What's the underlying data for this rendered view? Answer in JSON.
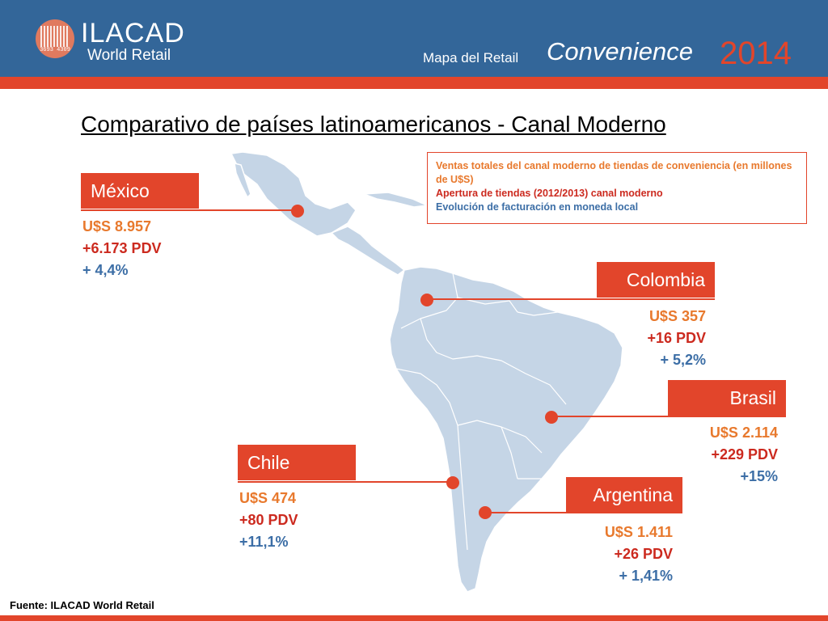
{
  "header": {
    "logo": {
      "name": "ILACAD",
      "subtitle": "World Retail",
      "code": "3693 4309"
    },
    "report_label": "Mapa del Retail",
    "report_title": "Convenience",
    "year": "2014",
    "colors": {
      "background": "#336699",
      "accent": "#e2452b"
    }
  },
  "title": "Comparativo de países latinoamericanos - Canal Moderno",
  "legend": {
    "line1": "Ventas totales del canal moderno de tiendas de conveniencia (en millones de U$S)",
    "line2": "Apertura de tiendas (2012/2013) canal moderno",
    "line3": "Evolución de facturación en moneda local"
  },
  "countries": [
    {
      "name": "México",
      "sales": "U$S 8.957",
      "stores": "+6.173 PDV",
      "growth": "+ 4,4%"
    },
    {
      "name": "Colombia",
      "sales": "U$S 357",
      "stores": "+16 PDV",
      "growth": "+ 5,2%"
    },
    {
      "name": "Brasil",
      "sales": "U$S 2.114",
      "stores": "+229 PDV",
      "growth": "+15%"
    },
    {
      "name": "Chile",
      "sales": "U$S 474",
      "stores": "+80 PDV",
      "growth": "+11,1%"
    },
    {
      "name": "Argentina",
      "sales": "U$S 1.411",
      "stores": "+26  PDV",
      "growth": "+ 1,41%"
    }
  ],
  "footer": {
    "source": "Fuente: ILACAD World Retail"
  },
  "colors": {
    "sales": "#e8792d",
    "stores": "#cc2a1f",
    "growth": "#3c6ea6",
    "map": "#c5d5e6"
  }
}
